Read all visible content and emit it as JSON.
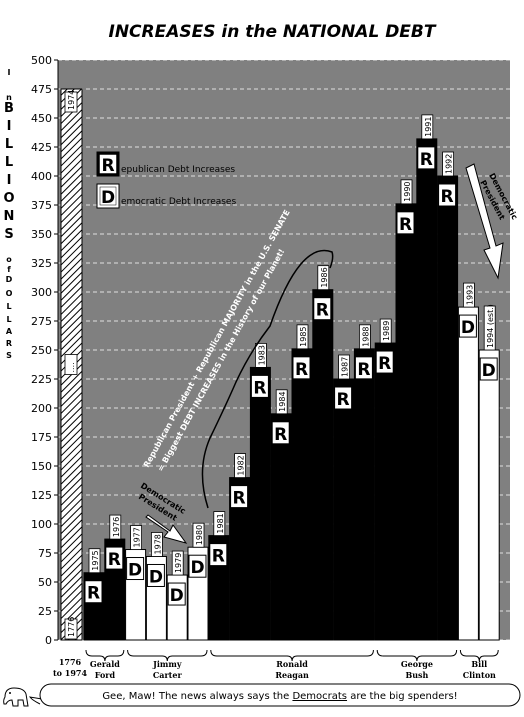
{
  "colors": {
    "republican": "#000000",
    "democratic": "#ffffff",
    "background": "#808080",
    "hatch": "#ffffff"
  },
  "chart_data": {
    "type": "bar",
    "title": "INCREASES in the NATIONAL DEBT",
    "ylabel_letters": [
      "I",
      "n",
      "B",
      "I",
      "L",
      "L",
      "I",
      "O",
      "N",
      "S",
      "o",
      "f",
      "D",
      "O",
      "L",
      "L",
      "A",
      "R",
      "S"
    ],
    "ylim": [
      0,
      500
    ],
    "yticks": [
      0,
      25,
      50,
      75,
      100,
      125,
      150,
      175,
      200,
      225,
      250,
      275,
      300,
      325,
      350,
      375,
      400,
      425,
      450,
      475,
      500
    ],
    "grid": true,
    "legend_position": "upper-left",
    "legend": [
      {
        "letter": "R",
        "rest": "epublican Debt Increases",
        "party": "R"
      },
      {
        "letter": "D",
        "rest": "emocratic Debt Increases",
        "party": "D"
      }
    ],
    "first_bar": {
      "range_label": "1776 to 1974",
      "range_lines": [
        "1776",
        "to 1974"
      ],
      "value": 475,
      "start_label": "1776",
      "end_label": "1974",
      "mid_label": "...."
    },
    "bars": [
      {
        "year": "1975",
        "value": 58,
        "party": "R"
      },
      {
        "year": "1976",
        "value": 87,
        "party": "R"
      },
      {
        "year": "1977",
        "value": 78,
        "party": "D"
      },
      {
        "year": "1978",
        "value": 72,
        "party": "D"
      },
      {
        "year": "1979",
        "value": 56,
        "party": "D"
      },
      {
        "year": "1980",
        "value": 80,
        "party": "D"
      },
      {
        "year": "1981",
        "value": 90,
        "party": "R"
      },
      {
        "year": "1982",
        "value": 140,
        "party": "R"
      },
      {
        "year": "1983",
        "value": 235,
        "party": "R"
      },
      {
        "year": "1984",
        "value": 195,
        "party": "R"
      },
      {
        "year": "1985",
        "value": 251,
        "party": "R"
      },
      {
        "year": "1986",
        "value": 302,
        "party": "R"
      },
      {
        "year": "1987",
        "value": 225,
        "party": "R"
      },
      {
        "year": "1988",
        "value": 251,
        "party": "R"
      },
      {
        "year": "1989",
        "value": 256,
        "party": "R"
      },
      {
        "year": "1990",
        "value": 376,
        "party": "R"
      },
      {
        "year": "1991",
        "value": 432,
        "party": "R"
      },
      {
        "year": "1992",
        "value": 400,
        "party": "R"
      },
      {
        "year": "1993",
        "value": 287,
        "party": "D"
      },
      {
        "year": "1994 (est.)",
        "value": 250,
        "party": "D"
      }
    ],
    "presidents": [
      {
        "name": "Gerald Ford",
        "lines": [
          "Gerald",
          "Ford"
        ],
        "from": 0,
        "to": 1
      },
      {
        "name": "Jimmy Carter",
        "lines": [
          "Jimmy",
          "Carter"
        ],
        "from": 2,
        "to": 5
      },
      {
        "name": "Ronald Reagan",
        "lines": [
          "Ronald",
          "Reagan"
        ],
        "from": 6,
        "to": 13
      },
      {
        "name": "George Bush",
        "lines": [
          "George",
          "Bush"
        ],
        "from": 14,
        "to": 17
      },
      {
        "name": "Bill Clinton",
        "lines": [
          "Bill",
          "Clinton"
        ],
        "from": 18,
        "to": 19
      }
    ],
    "annotations": [
      {
        "id": "carter",
        "lines": [
          "Democratic",
          "President"
        ]
      },
      {
        "id": "clinton",
        "lines": [
          "Democratic",
          "President"
        ]
      },
      {
        "id": "reagan",
        "lines": [
          "Republican President + Republican MAJORITY in the U.S. SENATE",
          "= Biggest DEBT INCREASES in the History of our Planet!"
        ]
      }
    ],
    "caption": {
      "prefix": "Gee, Maw! The news always says the ",
      "emphasis": "Democrats",
      "suffix": " are the big spenders!"
    }
  }
}
